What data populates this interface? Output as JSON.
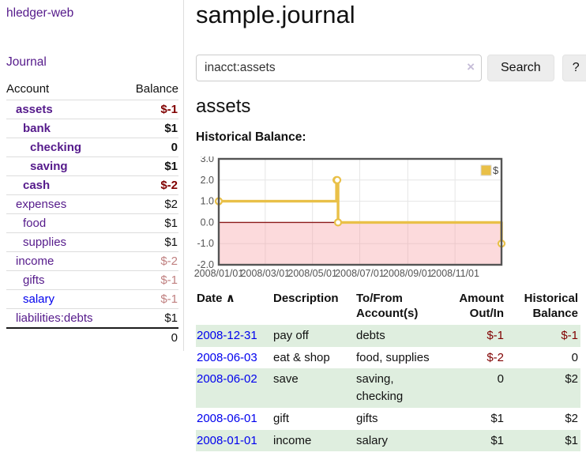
{
  "app": {
    "brand": "hledger-web",
    "nav": {
      "journal": "Journal"
    }
  },
  "colors": {
    "link_purple": "#551a8b",
    "link_blue": "#0000ee",
    "negative": "#800000",
    "negative_faded": "#c08080",
    "row_green": "#dfeedf",
    "chart_line": "#e9c048",
    "chart_negative_fill": "rgba(245,150,155,0.35)",
    "chart_zero_line": "#8b1a1a"
  },
  "sidebar": {
    "columns": {
      "account": "Account",
      "balance": "Balance"
    },
    "accounts": [
      {
        "name": "assets",
        "balance": "$-1"
      },
      {
        "name": "bank",
        "balance": "$1"
      },
      {
        "name": "checking",
        "balance": "0"
      },
      {
        "name": "saving",
        "balance": "$1"
      },
      {
        "name": "cash",
        "balance": "$-2"
      },
      {
        "name": "expenses",
        "balance": "$2"
      },
      {
        "name": "food",
        "balance": "$1"
      },
      {
        "name": "supplies",
        "balance": "$1"
      },
      {
        "name": "income",
        "balance": "$-2"
      },
      {
        "name": "gifts",
        "balance": "$-1"
      },
      {
        "name": "salary",
        "balance": "$-1"
      },
      {
        "name": "liabilities:debts",
        "balance": "$1"
      }
    ],
    "total": "0"
  },
  "main": {
    "title": "sample.journal",
    "search": {
      "value": "inacct:assets",
      "clear": "×",
      "button": "Search",
      "help": "?"
    },
    "account_title": "assets",
    "chart_title": "Historical Balance:"
  },
  "chart_data": {
    "type": "line",
    "step": true,
    "title": "Historical Balance:",
    "series": [
      {
        "name": "$",
        "color": "#e9c048",
        "points": [
          [
            "2008-01-01",
            1
          ],
          [
            "2008-06-01",
            2
          ],
          [
            "2008-06-02",
            2
          ],
          [
            "2008-06-03",
            0
          ],
          [
            "2008-12-31",
            -1
          ]
        ]
      }
    ],
    "x_range": [
      "2008-01-01",
      "2008-12-31"
    ],
    "x_ticks": [
      "2008/01/01",
      "2008/03/01",
      "2008/05/01",
      "2008/07/01",
      "2008/09/01",
      "2008/11/01"
    ],
    "y_ticks": [
      3.0,
      2.0,
      1.0,
      0.0,
      -1.0,
      -2.0
    ],
    "ylim": [
      -2.0,
      3.0
    ],
    "grid": true,
    "legend": "$",
    "legend_position": "top-right",
    "negative_region_shaded": true
  },
  "register": {
    "headers": {
      "date": "Date",
      "sort": "∧",
      "description": "Description",
      "tofrom_1": "To/From",
      "tofrom_2": "Account(s)",
      "amount_1": "Amount",
      "amount_2": "Out/In",
      "balance_1": "Historical",
      "balance_2": "Balance"
    },
    "rows": [
      {
        "date": "2008-12-31",
        "description": "pay off",
        "accounts": "debts",
        "amount": "$-1",
        "balance": "$-1"
      },
      {
        "date": "2008-06-03",
        "description": "eat & shop",
        "accounts": "food, supplies",
        "amount": "$-2",
        "balance": "0"
      },
      {
        "date": "2008-06-02",
        "description": "save",
        "accounts": "saving, checking",
        "amount": "0",
        "balance": "$2"
      },
      {
        "date": "2008-06-01",
        "description": "gift",
        "accounts": "gifts",
        "amount": "$1",
        "balance": "$2"
      },
      {
        "date": "2008-01-01",
        "description": "income",
        "accounts": "salary",
        "amount": "$1",
        "balance": "$1"
      }
    ]
  }
}
